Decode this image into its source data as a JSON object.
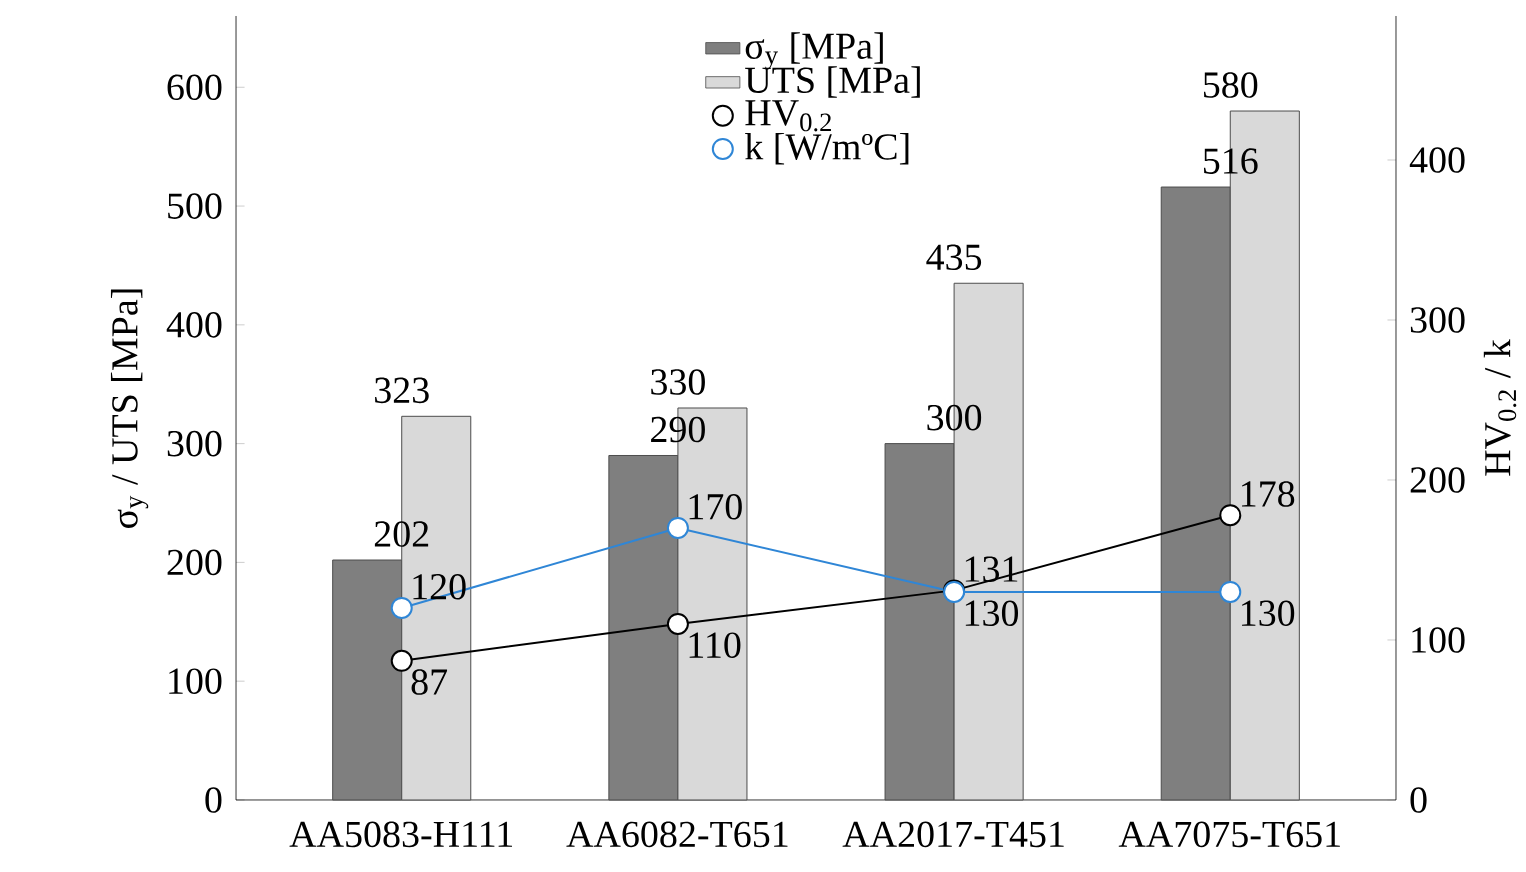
{
  "chart_data": {
    "type": "bar",
    "categories": [
      "AA5083-H111",
      "AA6082-T651",
      "AA2017-T451",
      "AA7075-T651"
    ],
    "ylabel": "σ$_{y}$ / UTS  [MPa]",
    "y2label": "HV$_{0.2}$ / k",
    "ylim": [
      0,
      660
    ],
    "yticks": [
      0,
      100,
      200,
      300,
      400,
      500,
      600
    ],
    "y2lim": [
      0,
      490
    ],
    "y2ticks": [
      0,
      100,
      200,
      300,
      400
    ],
    "series": [
      {
        "name": "σ$_{y}$  [MPa]",
        "color": "#7f7f7f",
        "values": [
          202,
          290,
          300,
          516
        ]
      },
      {
        "name": "UTS [MPa]",
        "color": "#d9d9d9",
        "values": [
          323,
          330,
          435,
          580
        ]
      },
      {
        "name": "HV$_{0.2}$",
        "type": "line",
        "axis": "y2",
        "color": "#000000",
        "values": [
          87,
          110,
          131,
          178
        ]
      },
      {
        "name": "k [W/mºC]",
        "type": "line",
        "axis": "y2",
        "color": "#2f86d6",
        "values": [
          120,
          170,
          130,
          130
        ]
      }
    ],
    "data_labels": true,
    "marker": "circle",
    "legend": "top",
    "grid": false
  }
}
